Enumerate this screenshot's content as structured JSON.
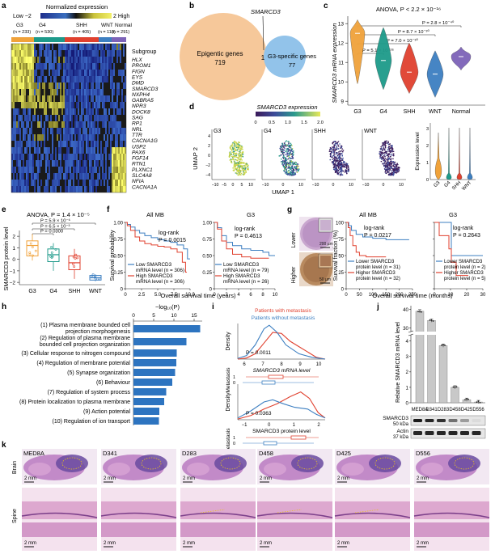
{
  "panels": {
    "a": {
      "label": "a",
      "legend_title": "Normalized expression",
      "legend_low": "Low −2",
      "legend_high": "2  High",
      "groups": [
        {
          "name": "G3",
          "n": "(n = 233)"
        },
        {
          "name": "G4",
          "n": "(n = 530)"
        },
        {
          "name": "SHH",
          "n": "(n = 405)"
        },
        {
          "name": "WNT",
          "n": "(n = 118)"
        },
        {
          "name": "Normal",
          "n": "(n = 291)"
        }
      ],
      "subgroup_label": "Subgroup",
      "genes": [
        "HLX",
        "PROM1",
        "FIGN",
        "EYS",
        "DMD",
        "SMARCD3",
        "NXPH4",
        "GABRA5",
        "NPR3",
        "DOCK8",
        "SAG",
        "RP1",
        "NRL",
        "TTR",
        "CACNA1G",
        "USP2",
        "PAX6",
        "FGF14",
        "RTN1",
        "PLXNC1",
        "SLC4A8",
        "NFIA",
        "CACNA1A"
      ]
    },
    "b": {
      "label": "b",
      "gene": "SMARCD3",
      "left_name": "Epigentic genes",
      "left_count": "719",
      "overlap": "1",
      "right_name": "G3-specific genes",
      "right_count": "77"
    },
    "c": {
      "label": "c",
      "anova": "ANOVA, P < 2.2 × 10⁻¹⁶",
      "ylabel": "SMARCD3 mRNA expression",
      "categories": [
        "G3",
        "G4",
        "SHH",
        "WNT",
        "Normal"
      ],
      "yticks": [
        "9",
        "10",
        "11",
        "12",
        "13"
      ],
      "pvals": [
        "P = 5.1 × 10⁻²⁶",
        "P = 7.0 × 10⁻³⁰",
        "P = 8.7 × 10⁻³⁰",
        "P = 2.8 × 10⁻⁴⁰"
      ]
    },
    "d": {
      "label": "d",
      "title": "SMARCD3 expression",
      "scale_ticks": [
        "0",
        "0.5",
        "1.0",
        "1.5",
        "2.0"
      ],
      "panels": [
        "G3",
        "G4",
        "SHH",
        "WNT"
      ],
      "ylabel": "UMAP 2",
      "xlabel": "UMAP 1",
      "yticks": [
        "4",
        "2",
        "0",
        "−2",
        "−4"
      ],
      "xticks": [
        "−10",
        "−5",
        "0",
        "5",
        "10"
      ],
      "violin_ylabel": "Expression level",
      "violin_ticks": [
        "0",
        "1",
        "2",
        "3"
      ],
      "violin_cats": [
        "G3",
        "G4",
        "SHH",
        "WNT"
      ]
    },
    "e": {
      "label": "e",
      "anova": "ANOVA, P = 1.4 × 10⁻⁵",
      "ylabel": "SMARCD3 protein level",
      "pvals": [
        "P = 5.9 × 10⁻⁶",
        "P = 6.5 × 10⁻³",
        "P = 0.0300"
      ],
      "categories": [
        "G3",
        "G4",
        "SHH",
        "WNT"
      ],
      "yticks": [
        "2",
        "1",
        "0",
        "−1",
        "−2"
      ]
    },
    "f": {
      "label": "f",
      "left_title": "All MB",
      "right_title": "G3",
      "ylabel": "Survival probability",
      "xlabel": "Overall survival time (years)",
      "yticks": [
        "1.00",
        "0.75",
        "0.50",
        "0.25",
        "0"
      ],
      "left_xticks": [
        "0",
        "2.5",
        "5.0",
        "7.5",
        "10.0"
      ],
      "right_xticks": [
        "0",
        "2",
        "4",
        "6",
        "8",
        "10"
      ],
      "left_logrank": "log-rank",
      "left_p": "P = 0.0015",
      "right_logrank": "log-rank",
      "right_p": "P = 0.4613",
      "left_low": "Low SMARCD3",
      "left_low2": "mRNA level (n = 306)",
      "left_high": "High SMARCD3",
      "left_high2": "mRNA level (n = 306)",
      "right_low": "Low SMARCD3",
      "right_low2": "mRNA level (n = 79)",
      "right_high": "High SMARCD3",
      "right_high2": "mRNA level (n = 26)"
    },
    "g": {
      "label": "g",
      "row_lower": "Lower",
      "row_higher": "Higher",
      "scale": "200 µm",
      "scale2": "50 µm",
      "left_title": "All MB",
      "right_title": "G3",
      "ylabel": "Survival fraction (%)",
      "xlabel": "Overall survival time (months)",
      "yticks": [
        "100",
        "75",
        "50",
        "25",
        "0"
      ],
      "left_xticks": [
        "0",
        "50",
        "100",
        "150",
        "200",
        "250"
      ],
      "right_xticks": [
        "0",
        "10",
        "20",
        "30"
      ],
      "left_logrank": "log-rank",
      "left_p": "P = 0.0217",
      "right_logrank": "log-rank",
      "right_p": "P = 0.2643",
      "left_lower": "Lower SMARCD3",
      "left_lower2": "protein level (n = 31)",
      "left_higher": "Higher SMARCD3",
      "left_higher2": "protein level (n = 32)",
      "right_lower": "Lower SMARCD3",
      "right_lower2": "protein level (n = 2)",
      "right_higher": "Higher SMARCD3",
      "right_higher2": "protein level (n = 5)"
    },
    "h": {
      "label": "h",
      "axis_title": "−log₁₀(P)",
      "xticks": [
        "0",
        "5",
        "10",
        "15"
      ],
      "terms": [
        "(1) Plasma membrane bounded cell|projection morphogenesis",
        "(2) Regulation of plasma membrane|bounded cell projection organization",
        "(3) Cellular response to nitrogen compound",
        "(4) Regulation of membrane potential",
        "(5) Synapse organization",
        "(6) Behaviour",
        "(7) Regulation of system process",
        "(8) Protein localization to plasma membrane",
        "(9) Action potential",
        "(10) Regulation of ion transport"
      ]
    },
    "i": {
      "label": "i",
      "legend_met": "Patients with metastasis",
      "legend_nomet": "Patients without metastasis",
      "density": "Density",
      "metastasis": "Metastasis",
      "p1": "P = 0.0011",
      "p2": "P = 0.0363",
      "x1label": "SMARCD3 mRNA level",
      "x2label": "SMARCD3 protein level",
      "x1ticks": [
        "6",
        "7",
        "8",
        "9",
        "10"
      ],
      "x2ticks": [
        "−1",
        "0",
        "1",
        "2"
      ],
      "yes": "1",
      "no": "0"
    },
    "j": {
      "label": "j",
      "ylabel": "Relative SMARCD3 mRNA level",
      "yticks": [
        "40",
        "30",
        "4",
        "3",
        "2",
        "1",
        "0"
      ],
      "lines": [
        "MED8A",
        "D341",
        "D283",
        "D458",
        "D425",
        "D556"
      ],
      "blot1": "SMARCD3",
      "blot1_kda": "50 kDa",
      "blot2": "Actin",
      "blot2_kda": "37 kDa"
    },
    "k": {
      "label": "k",
      "row_brain": "Brain",
      "row_spine": "Spine",
      "scale": "2 mm",
      "lines": [
        "MED8A",
        "D341",
        "D283",
        "D458",
        "D425",
        "D556"
      ]
    }
  },
  "chart_data": [
    {
      "panel": "c",
      "type": "violin",
      "categories": [
        "G3",
        "G4",
        "SHH",
        "WNT",
        "Normal"
      ],
      "medians": [
        12.4,
        11.1,
        10.5,
        10.4,
        11.3
      ],
      "ylim": [
        8.8,
        13.3
      ],
      "title": "ANOVA, P < 2.2 × 10^-16",
      "ylabel": "SMARCD3 mRNA expression"
    },
    {
      "panel": "e",
      "type": "box",
      "categories": [
        "G3",
        "G4",
        "SHH",
        "WNT"
      ],
      "medians": [
        1.2,
        0.4,
        -0.3,
        -1.6
      ],
      "q1": [
        0.3,
        -0.2,
        -0.9,
        -1.8
      ],
      "q3": [
        1.6,
        0.9,
        0.3,
        -1.4
      ],
      "ylim": [
        -2.2,
        2.5
      ]
    },
    {
      "panel": "h",
      "type": "bar",
      "orientation": "horizontal",
      "categories": [
        "(1)",
        "(2)",
        "(3)",
        "(4)",
        "(5)",
        "(6)",
        "(7)",
        "(8)",
        "(9)",
        "(10)"
      ],
      "values": [
        16.5,
        13.1,
        10.7,
        10.6,
        10.3,
        9.6,
        8.1,
        7.6,
        6.4,
        6.3
      ],
      "xlim": [
        0,
        17
      ],
      "xlabel": "-log10(P)"
    },
    {
      "panel": "j",
      "type": "bar",
      "categories": [
        "MED8A",
        "D341",
        "D283",
        "D458",
        "D425",
        "D556"
      ],
      "values": [
        39,
        34,
        3.7,
        1.0,
        0.2,
        0.05
      ],
      "ylabel": "Relative SMARCD3 mRNA level"
    }
  ],
  "colors": {
    "blue": "#3d7fc1",
    "red": "#e0412f",
    "orange": "#f0a23a",
    "teal": "#1d9a8a",
    "green": "#2e8b57",
    "purple": "#7d63b8",
    "barblue": "#2d74c0",
    "vennOrange": "#f6c89a",
    "vennBlue": "#92c3ea"
  }
}
